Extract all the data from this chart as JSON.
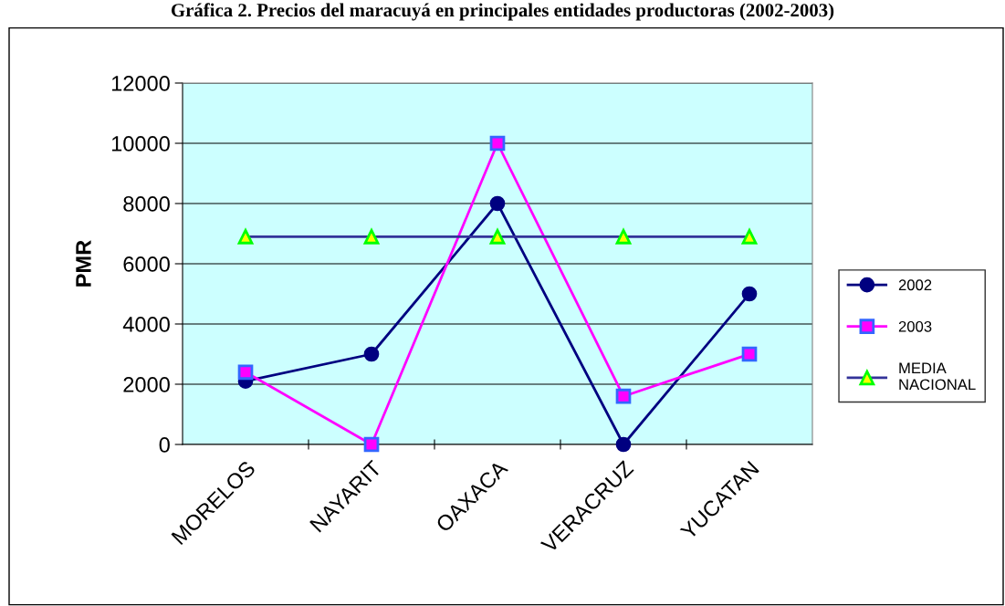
{
  "chart_data": {
    "type": "line",
    "title": "Gráfica 2. Precios del maracuyá en principales entidades productoras (2002-2003)",
    "ylabel": "PMR",
    "categories": [
      "MORELOS",
      "NAYARIT",
      "OAXACA",
      "VERACRUZ",
      "YUCATAN"
    ],
    "series": [
      {
        "name": "2002",
        "color": "#000080",
        "marker": "circle",
        "values": [
          2100,
          3000,
          8000,
          0,
          5000
        ]
      },
      {
        "name": "2003",
        "color": "#ff00ff",
        "marker": "square",
        "values": [
          2400,
          0,
          10000,
          1600,
          3000
        ]
      },
      {
        "name": "MEDIA NACIONAL",
        "color": "#333399",
        "marker": "triangle",
        "values": [
          6900,
          6900,
          6900,
          6900,
          6900
        ]
      }
    ],
    "ylim": [
      0,
      12000
    ],
    "yticks": [
      0,
      2000,
      4000,
      6000,
      8000,
      10000,
      12000
    ],
    "grid": "y",
    "legend": "right"
  }
}
